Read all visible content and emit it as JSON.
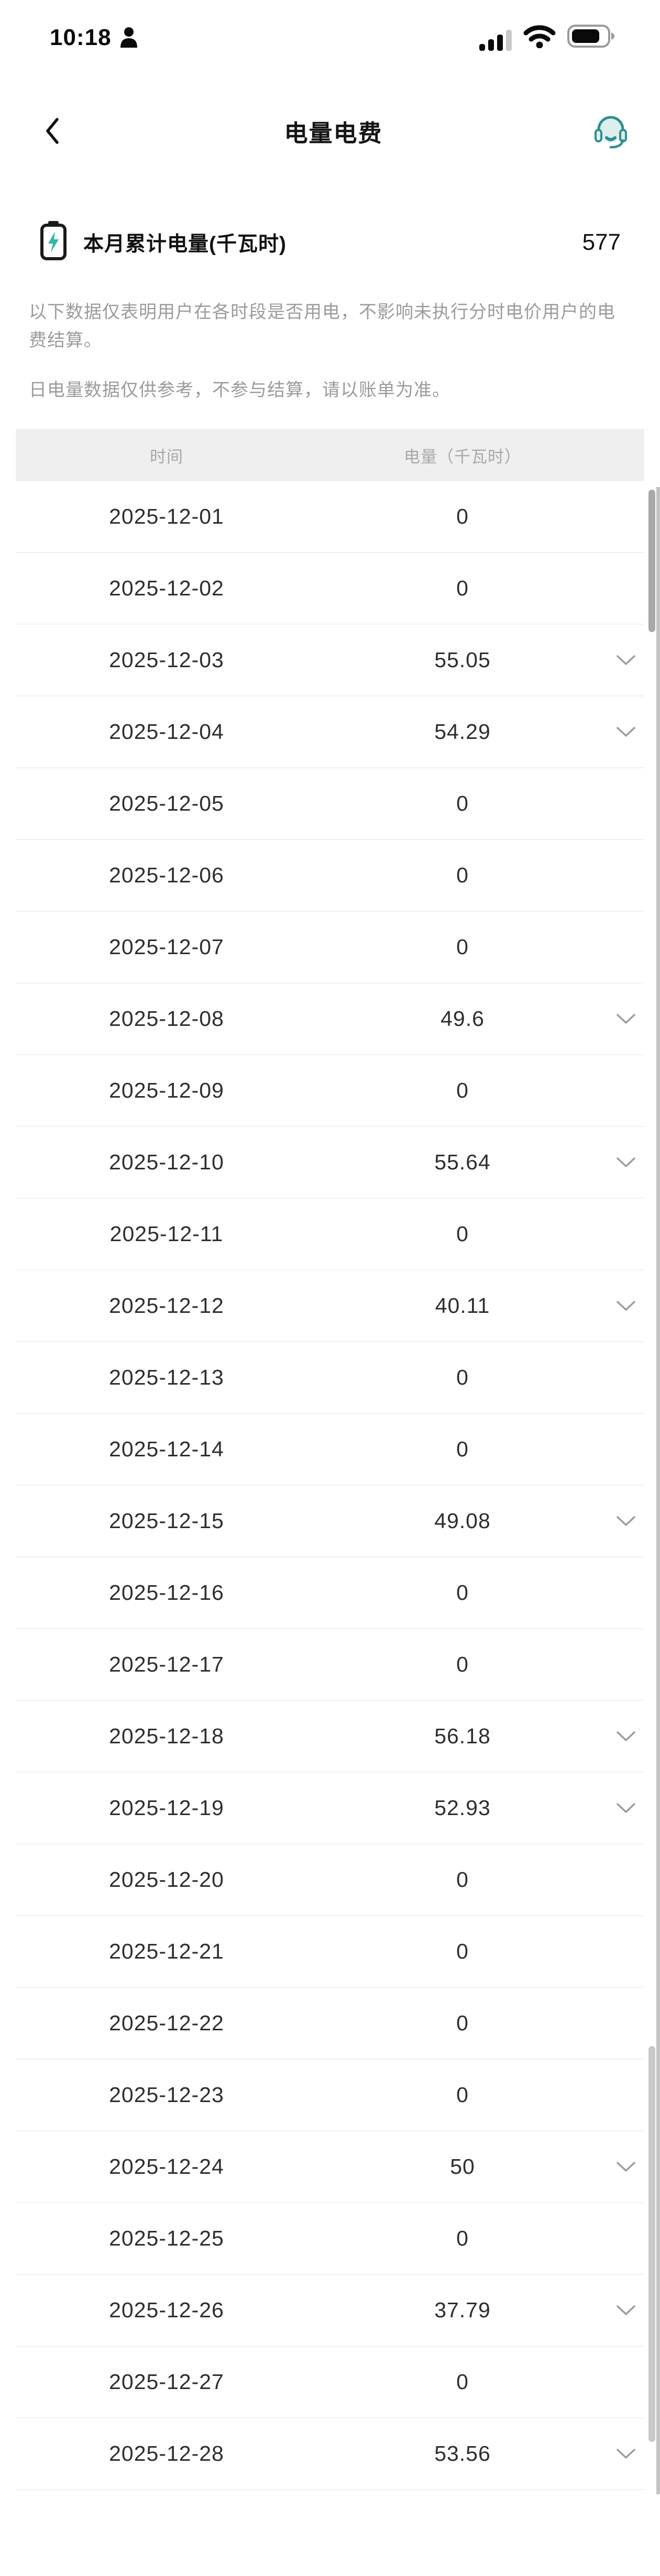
{
  "status_bar": {
    "time": "10:18",
    "icons": [
      "person-icon",
      "signal-icon",
      "wifi-icon",
      "battery-icon"
    ],
    "battery_level_percent": 75,
    "signal_bars_filled": 3
  },
  "nav": {
    "title": "电量电费",
    "back_icon": "chevron-left-icon",
    "service_icon": "headset-icon"
  },
  "summary": {
    "icon": "battery-bolt-icon",
    "label": "本月累计电量(千瓦时)",
    "value": "577"
  },
  "notices": {
    "p1": "以下数据仅表明用户在各时段是否用电，不影响未执行分时电价用户的电费结算。",
    "p2": "日电量数据仅供参考，不参与结算，请以账单为准。"
  },
  "table": {
    "col_time": "时间",
    "col_value": "电量（千瓦时）",
    "rows": [
      {
        "date": "2025-12-01",
        "value": "0",
        "expandable": false
      },
      {
        "date": "2025-12-02",
        "value": "0",
        "expandable": false
      },
      {
        "date": "2025-12-03",
        "value": "55.05",
        "expandable": true
      },
      {
        "date": "2025-12-04",
        "value": "54.29",
        "expandable": true
      },
      {
        "date": "2025-12-05",
        "value": "0",
        "expandable": false
      },
      {
        "date": "2025-12-06",
        "value": "0",
        "expandable": false
      },
      {
        "date": "2025-12-07",
        "value": "0",
        "expandable": false
      },
      {
        "date": "2025-12-08",
        "value": "49.6",
        "expandable": true
      },
      {
        "date": "2025-12-09",
        "value": "0",
        "expandable": false
      },
      {
        "date": "2025-12-10",
        "value": "55.64",
        "expandable": true
      },
      {
        "date": "2025-12-11",
        "value": "0",
        "expandable": false
      },
      {
        "date": "2025-12-12",
        "value": "40.11",
        "expandable": true
      },
      {
        "date": "2025-12-13",
        "value": "0",
        "expandable": false
      },
      {
        "date": "2025-12-14",
        "value": "0",
        "expandable": false
      },
      {
        "date": "2025-12-15",
        "value": "49.08",
        "expandable": true
      },
      {
        "date": "2025-12-16",
        "value": "0",
        "expandable": false
      },
      {
        "date": "2025-12-17",
        "value": "0",
        "expandable": false
      },
      {
        "date": "2025-12-18",
        "value": "56.18",
        "expandable": true
      },
      {
        "date": "2025-12-19",
        "value": "52.93",
        "expandable": true
      },
      {
        "date": "2025-12-20",
        "value": "0",
        "expandable": false
      },
      {
        "date": "2025-12-21",
        "value": "0",
        "expandable": false
      },
      {
        "date": "2025-12-22",
        "value": "0",
        "expandable": false
      },
      {
        "date": "2025-12-23",
        "value": "0",
        "expandable": false
      },
      {
        "date": "2025-12-24",
        "value": "50",
        "expandable": true
      },
      {
        "date": "2025-12-25",
        "value": "0",
        "expandable": false
      },
      {
        "date": "2025-12-26",
        "value": "37.79",
        "expandable": true
      },
      {
        "date": "2025-12-27",
        "value": "0",
        "expandable": false
      },
      {
        "date": "2025-12-28",
        "value": "53.56",
        "expandable": true
      }
    ]
  },
  "colors": {
    "accent_teal": "#2e8f8f",
    "bolt_teal": "#2db8a8",
    "notice_gray": "#9b9b9b",
    "header_bg": "#efefef",
    "separator": "#f2f2f2",
    "chevron_gray": "#9c9c9c"
  }
}
